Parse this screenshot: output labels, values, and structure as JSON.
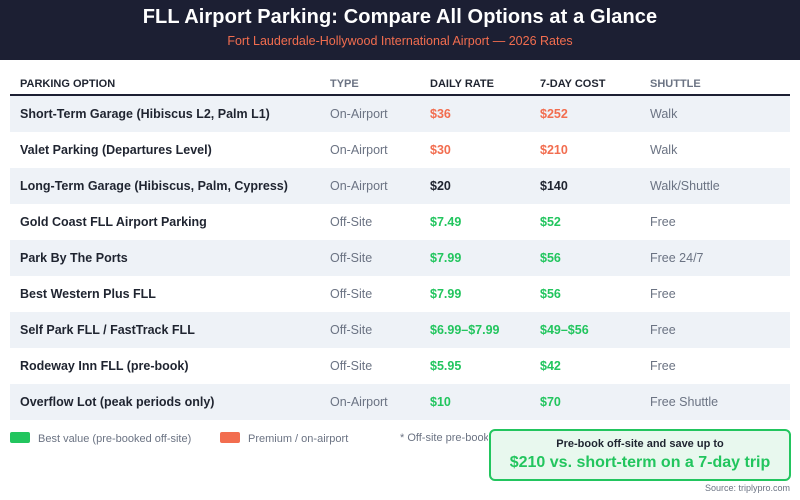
{
  "header": {
    "title": "FLL Airport Parking: Compare All Options at a Glance",
    "subtitle": "Fort Lauderdale-Hollywood International Airport — 2026 Rates"
  },
  "table": {
    "columns": [
      "PARKING OPTION",
      "TYPE",
      "DAILY RATE",
      "7-DAY COST",
      "SHUTTLE"
    ],
    "rows": [
      {
        "option": "Short-Term Garage (Hibiscus L2, Palm L1)",
        "type": "On-Airport",
        "daily": "$36",
        "week": "$252",
        "shuttle": "Walk",
        "tier": "premium"
      },
      {
        "option": "Valet Parking (Departures Level)",
        "type": "On-Airport",
        "daily": "$30",
        "week": "$210",
        "shuttle": "Walk",
        "tier": "premium"
      },
      {
        "option": "Long-Term Garage (Hibiscus, Palm, Cypress)",
        "type": "On-Airport",
        "daily": "$20",
        "week": "$140",
        "shuttle": "Walk/Shuttle",
        "tier": "neutral"
      },
      {
        "option": "Gold Coast FLL Airport Parking",
        "type": "Off-Site",
        "daily": "$7.49",
        "week": "$52",
        "shuttle": "Free",
        "tier": "value"
      },
      {
        "option": "Park By The Ports",
        "type": "Off-Site",
        "daily": "$7.99",
        "week": "$56",
        "shuttle": "Free 24/7",
        "tier": "value"
      },
      {
        "option": "Best Western Plus FLL",
        "type": "Off-Site",
        "daily": "$7.99",
        "week": "$56",
        "shuttle": "Free",
        "tier": "value"
      },
      {
        "option": "Self Park FLL / FastTrack FLL",
        "type": "Off-Site",
        "daily": "$6.99–$7.99",
        "week": "$49–$56",
        "shuttle": "Free",
        "tier": "value"
      },
      {
        "option": "Rodeway Inn FLL (pre-book)",
        "type": "Off-Site",
        "daily": "$5.95",
        "week": "$42",
        "shuttle": "Free",
        "tier": "value"
      },
      {
        "option": "Overflow Lot (peak periods only)",
        "type": "On-Airport",
        "daily": "$10",
        "week": "$70",
        "shuttle": "Free Shuttle",
        "tier": "value"
      }
    ]
  },
  "legend": {
    "value_label": "Best value (pre-booked off-site)",
    "premium_label": "Premium / on-airport",
    "note": "* Off-site pre-book"
  },
  "callout": {
    "line1": "Pre-book off-site and save up to",
    "line2": "$210 vs. short-term on a 7-day trip"
  },
  "source": "Source: triplypro.com",
  "colors": {
    "value": "#22c55e",
    "premium": "#f26d4f",
    "neutral": "#1f2430",
    "header_bg": "#1c1f33"
  }
}
